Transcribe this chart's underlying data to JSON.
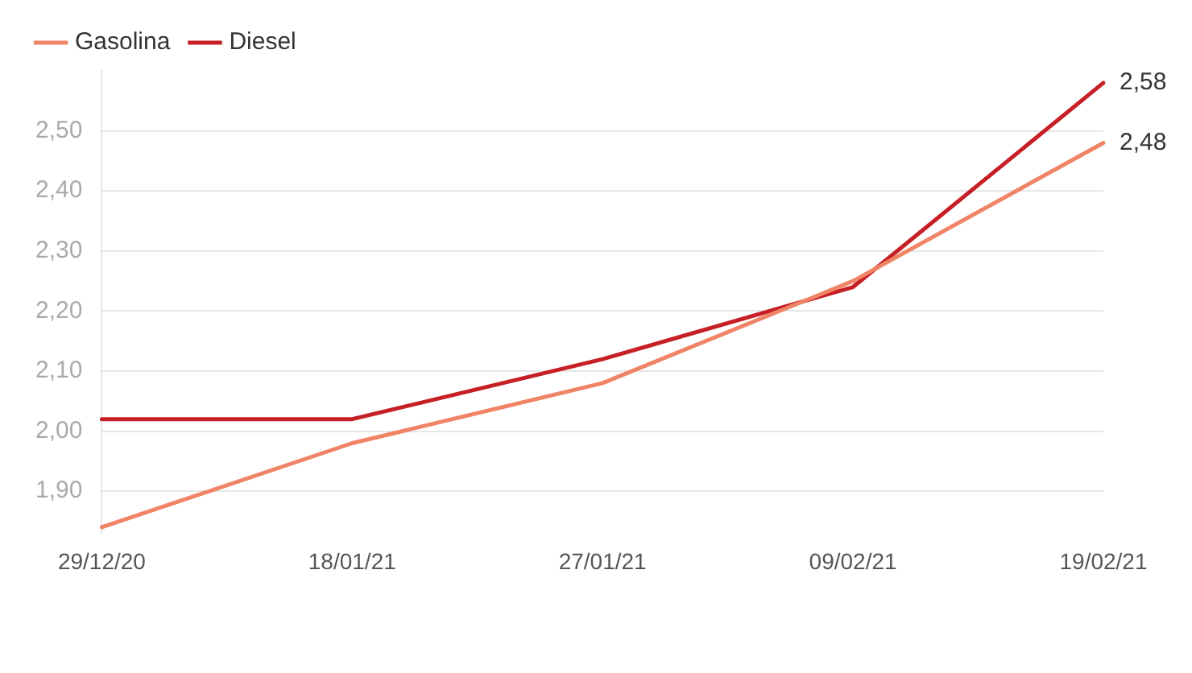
{
  "chart_data": {
    "type": "line",
    "categories": [
      "29/12/20",
      "18/01/21",
      "27/01/21",
      "09/02/21",
      "19/02/21"
    ],
    "series": [
      {
        "name": "Gasolina",
        "color": "#f08466",
        "values": [
          1.84,
          1.98,
          2.08,
          2.25,
          2.48
        ],
        "value_labels": [
          null,
          null,
          null,
          null,
          "2,48"
        ]
      },
      {
        "name": "Diesel",
        "color": "#c62026",
        "values": [
          2.02,
          2.02,
          2.12,
          2.24,
          2.58
        ],
        "value_labels": [
          null,
          null,
          null,
          null,
          "2,58"
        ]
      }
    ],
    "ylim": [
      1.83,
      2.6
    ],
    "yticks": [
      {
        "value": 1.9,
        "label": "1,90"
      },
      {
        "value": 2.0,
        "label": "2,00"
      },
      {
        "value": 2.1,
        "label": "2,10"
      },
      {
        "value": 2.2,
        "label": "2,20"
      },
      {
        "value": 2.3,
        "label": "2,30"
      },
      {
        "value": 2.4,
        "label": "2,40"
      },
      {
        "value": 2.5,
        "label": "2,50"
      }
    ],
    "grid": "y",
    "legend": "top left",
    "marker": "none",
    "line_style": "solid"
  }
}
